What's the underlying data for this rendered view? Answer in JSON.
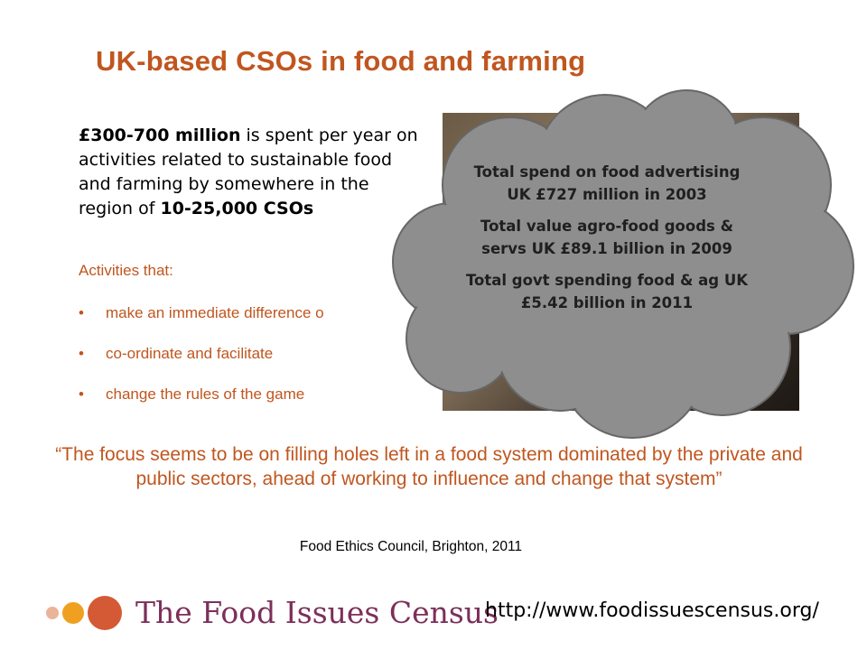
{
  "slide": {
    "title": "UK-based CSOs in food and farming",
    "intro": {
      "part1_bold": "£300-700 million",
      "part2": " is spent per year on activities related to sustainable food and farming by somewhere in the region of ",
      "part3_bold": "10-25,000 CSOs"
    },
    "activities_heading": "Activities that:",
    "bullet_symbol": "•",
    "activities": [
      "make an immediate difference o",
      "co-ordinate and facilitate",
      "change the rules of the game"
    ],
    "cloud": {
      "lines": [
        "Total spend on food advertising UK £727 million in 2003",
        "Total value agro-food goods & servs UK £89.1 billion in 2009",
        "Total govt spending food & ag UK £5.42 billion in 2011"
      ],
      "fill_color": "#8e8e8e",
      "stroke_color": "#676767"
    },
    "quote": "“The focus seems to be on filling holes left in a food system dominated by the private and public sectors, ahead of working to influence and change that system”",
    "attribution": "Food Ethics Council, Brighton, 2011",
    "logo": {
      "text": "The Food Issues Census",
      "dot_colors": [
        "#e9b49a",
        "#f0a020",
        "#d45a35"
      ]
    },
    "url": "http://www.foodissuescensus.org/",
    "accent_color": "#c0561f"
  }
}
